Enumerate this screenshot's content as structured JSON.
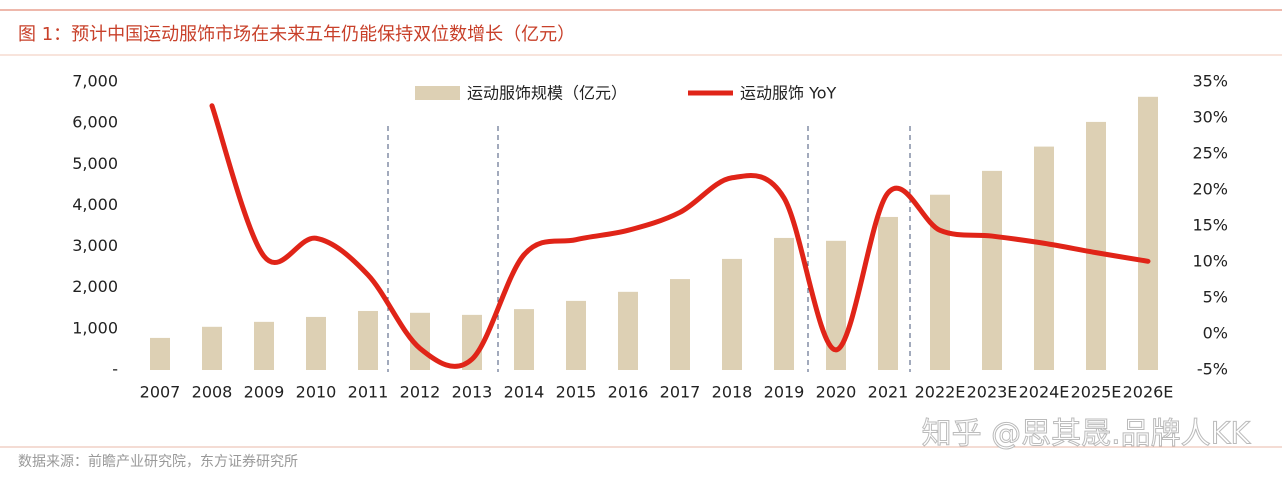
{
  "chart_data": {
    "type": "bar-line",
    "title": "图 1：预计中国运动服饰市场在未来五年仍能保持双位数增长（亿元）",
    "source": "数据来源：前瞻产业研究院，东方证券研究所",
    "watermark": "知乎 @思其晟.品牌人KK",
    "categories": [
      "2007",
      "2008",
      "2009",
      "2010",
      "2011",
      "2012",
      "2013",
      "2014",
      "2015",
      "2016",
      "2017",
      "2018",
      "2019",
      "2020",
      "2021",
      "2022E",
      "2023E",
      "2024E",
      "2025E",
      "2026E"
    ],
    "series": [
      {
        "name": "运动服饰规模（亿元）",
        "type": "bar",
        "color": "#ddd0b4",
        "values": [
          780,
          1050,
          1170,
          1290,
          1435,
          1390,
          1340,
          1480,
          1680,
          1900,
          2210,
          2700,
          3210,
          3140,
          3720,
          4260,
          4840,
          5430,
          6030,
          6640
        ]
      },
      {
        "name": "运动服饰 YoY",
        "type": "line",
        "axis": "y2",
        "color": "#e02418",
        "values": [
          null,
          31.7,
          10.8,
          13.3,
          8.2,
          -2.0,
          -3.5,
          11.0,
          13.1,
          14.4,
          16.9,
          21.7,
          18.9,
          -2.2,
          19.6,
          14.4,
          13.6,
          12.6,
          11.3,
          10.1
        ]
      }
    ],
    "ylim": [
      0,
      7000
    ],
    "yticks": [
      {
        "value": 0,
        "label": "-"
      },
      {
        "value": 1000,
        "label": "1,000"
      },
      {
        "value": 2000,
        "label": "2,000"
      },
      {
        "value": 3000,
        "label": "3,000"
      },
      {
        "value": 4000,
        "label": "4,000"
      },
      {
        "value": 5000,
        "label": "5,000"
      },
      {
        "value": 6000,
        "label": "6,000"
      },
      {
        "value": 7000,
        "label": "7,000"
      }
    ],
    "y2lim": [
      -5,
      35
    ],
    "y2ticks": [
      {
        "value": -5,
        "label": "-5%"
      },
      {
        "value": 0,
        "label": "0%"
      },
      {
        "value": 5,
        "label": "5%"
      },
      {
        "value": 10,
        "label": "10%"
      },
      {
        "value": 15,
        "label": "15%"
      },
      {
        "value": 20,
        "label": "20%"
      },
      {
        "value": 25,
        "label": "25%"
      },
      {
        "value": 30,
        "label": "30%"
      },
      {
        "value": 35,
        "label": "35%"
      }
    ],
    "grid": false,
    "legend": "top"
  }
}
